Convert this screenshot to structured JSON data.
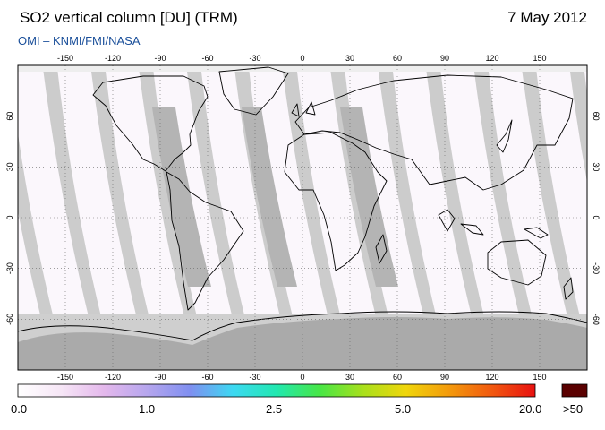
{
  "header": {
    "title": "SO2 vertical column [DU] (TRM)",
    "date": "7 May 2012",
    "subtitle": "OMI  –  KNMI/FMI/NASA"
  },
  "map": {
    "lon_ticks": [
      -150,
      -120,
      -90,
      -60,
      -30,
      0,
      30,
      60,
      90,
      120,
      150
    ],
    "lat_ticks": [
      60,
      30,
      0,
      -30,
      -60
    ],
    "lon_range": [
      -180,
      180
    ],
    "lat_range": [
      -90,
      90
    ],
    "no_data_color": "#cccccc",
    "polar_dark_color": "#aaaaaa",
    "coastline_color": "#000000",
    "grid": "dotted"
  },
  "colorbar": {
    "labels": [
      "0.0",
      "1.0",
      "2.5",
      "5.0",
      "20.0",
      ">50"
    ],
    "colors": [
      "#ffffff",
      "#f6e6f6",
      "#e4b8ec",
      "#b6a6ee",
      "#7f8ff0",
      "#3cd9f2",
      "#21e8b0",
      "#47e646",
      "#a8e01c",
      "#f0d60b",
      "#f39a0c",
      "#f1580f",
      "#e81111"
    ],
    "overflow_color": "#5a0000"
  }
}
